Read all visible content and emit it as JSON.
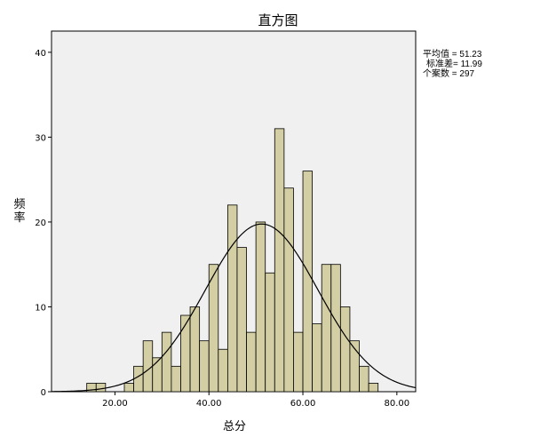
{
  "chart_data": {
    "type": "bar",
    "title": "直方图",
    "xlabel": "总分",
    "ylabel": "频率",
    "x_range": [
      6.5,
      84.0
    ],
    "ylim": [
      0,
      42.5
    ],
    "x_ticks": [
      20,
      40,
      60,
      80
    ],
    "x_tick_labels": [
      "20.00",
      "40.00",
      "60.00",
      "80.00"
    ],
    "y_ticks": [
      0,
      10,
      20,
      30,
      40
    ],
    "y_tick_labels": [
      "0",
      "10",
      "20",
      "30",
      "40"
    ],
    "grid": false,
    "bin_width": 2,
    "bins": [
      {
        "start": 14,
        "count": 1
      },
      {
        "start": 16,
        "count": 1
      },
      {
        "start": 18,
        "count": 0
      },
      {
        "start": 20,
        "count": 0
      },
      {
        "start": 22,
        "count": 1
      },
      {
        "start": 24,
        "count": 3
      },
      {
        "start": 26,
        "count": 6
      },
      {
        "start": 28,
        "count": 4
      },
      {
        "start": 30,
        "count": 7
      },
      {
        "start": 32,
        "count": 3
      },
      {
        "start": 34,
        "count": 9
      },
      {
        "start": 36,
        "count": 10
      },
      {
        "start": 38,
        "count": 6
      },
      {
        "start": 40,
        "count": 15
      },
      {
        "start": 42,
        "count": 5
      },
      {
        "start": 44,
        "count": 22
      },
      {
        "start": 46,
        "count": 17
      },
      {
        "start": 48,
        "count": 7
      },
      {
        "start": 50,
        "count": 20
      },
      {
        "start": 52,
        "count": 14
      },
      {
        "start": 54,
        "count": 31
      },
      {
        "start": 56,
        "count": 24
      },
      {
        "start": 58,
        "count": 7
      },
      {
        "start": 60,
        "count": 26
      },
      {
        "start": 62,
        "count": 8
      },
      {
        "start": 64,
        "count": 15
      },
      {
        "start": 66,
        "count": 15
      },
      {
        "start": 68,
        "count": 10
      },
      {
        "start": 70,
        "count": 6
      },
      {
        "start": 72,
        "count": 3
      },
      {
        "start": 74,
        "count": 1
      }
    ],
    "normal_curve": {
      "mean": 51.23,
      "std": 11.99,
      "n": 297
    },
    "bar_color": "#d3cea3",
    "plot_background": "#f0f0f0",
    "legend_position": "top-right"
  },
  "stats": {
    "mean_label": "平均值 = 51.23",
    "std_label": "标准差= 11.99",
    "n_label": "个案数 = 297"
  }
}
